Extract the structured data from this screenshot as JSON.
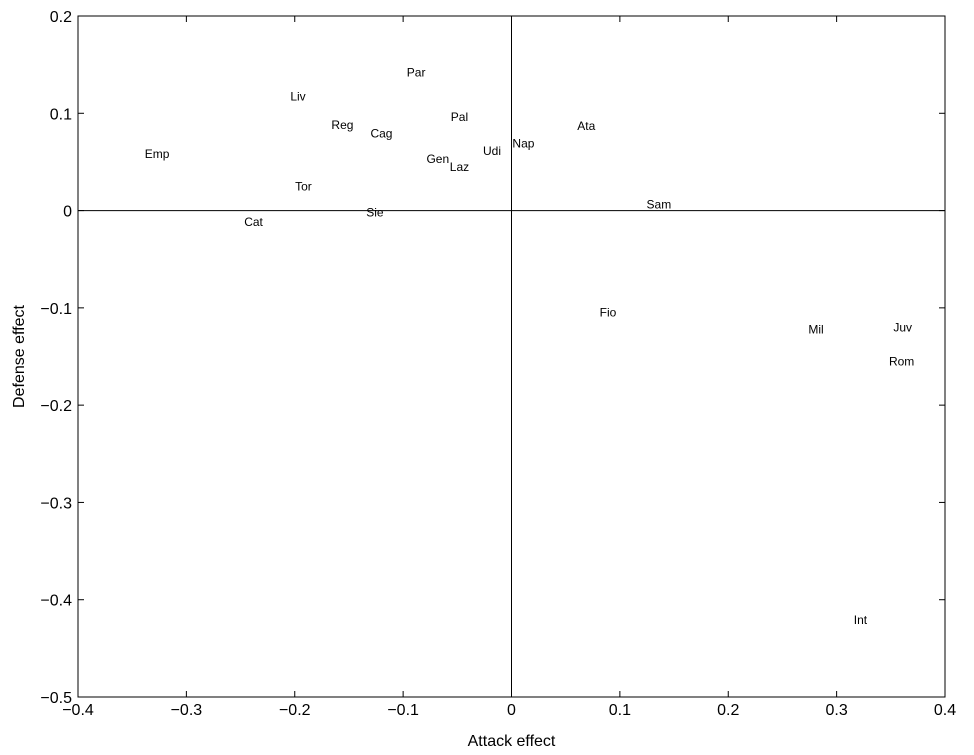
{
  "chart_data": {
    "type": "scatter",
    "title": "",
    "xlabel": "Attack effect",
    "ylabel": "Defense effect",
    "xlim": [
      -0.4,
      0.4
    ],
    "ylim": [
      -0.5,
      0.2
    ],
    "x_ticks": [
      -0.4,
      -0.3,
      -0.2,
      -0.1,
      0,
      0.1,
      0.2,
      0.3,
      0.4
    ],
    "x_tick_labels": [
      "−0.4",
      "−0.3",
      "−0.2",
      "−0.1",
      "0",
      "0.1",
      "0.2",
      "0.3",
      "0.4"
    ],
    "y_ticks": [
      -0.5,
      -0.4,
      -0.3,
      -0.2,
      -0.1,
      0,
      0.1,
      0.2
    ],
    "y_tick_labels": [
      "−0.5",
      "−0.4",
      "−0.3",
      "−0.2",
      "−0.1",
      "0",
      "0.1",
      "0.2"
    ],
    "grid": false,
    "reference_lines": {
      "x": 0,
      "y": 0
    },
    "points": [
      {
        "label": "Par",
        "x": -0.088,
        "y": 0.142
      },
      {
        "label": "Liv",
        "x": -0.197,
        "y": 0.117
      },
      {
        "label": "Pal",
        "x": -0.048,
        "y": 0.096
      },
      {
        "label": "Reg",
        "x": -0.156,
        "y": 0.088
      },
      {
        "label": "Ata",
        "x": 0.069,
        "y": 0.087
      },
      {
        "label": "Cag",
        "x": -0.12,
        "y": 0.079
      },
      {
        "label": "Nap",
        "x": 0.011,
        "y": 0.069
      },
      {
        "label": "Udi",
        "x": -0.018,
        "y": 0.061
      },
      {
        "label": "Emp",
        "x": -0.327,
        "y": 0.058
      },
      {
        "label": "Gen",
        "x": -0.068,
        "y": 0.053
      },
      {
        "label": "Laz",
        "x": -0.048,
        "y": 0.045
      },
      {
        "label": "Tor",
        "x": -0.192,
        "y": 0.025
      },
      {
        "label": "Sam",
        "x": 0.136,
        "y": 0.006
      },
      {
        "label": "Sie",
        "x": -0.126,
        "y": -0.002
      },
      {
        "label": "Cat",
        "x": -0.238,
        "y": -0.012
      },
      {
        "label": "Fio",
        "x": 0.089,
        "y": -0.105
      },
      {
        "label": "Juv",
        "x": 0.361,
        "y": -0.12
      },
      {
        "label": "Mil",
        "x": 0.281,
        "y": -0.122
      },
      {
        "label": "Rom",
        "x": 0.36,
        "y": -0.155
      },
      {
        "label": "Int",
        "x": 0.322,
        "y": -0.421
      }
    ]
  }
}
